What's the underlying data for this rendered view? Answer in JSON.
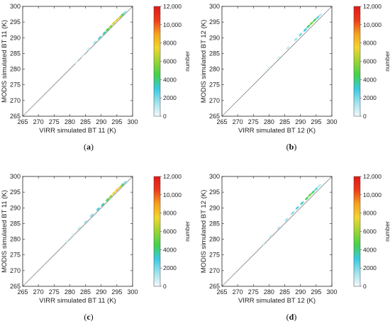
{
  "colors": {
    "colormap": [
      "#f4f9fb",
      "#9fe3ee",
      "#38c9e1",
      "#42d24a",
      "#9bd433",
      "#f2d62c",
      "#f7a21c",
      "#ee3a1a",
      "#e0181b"
    ],
    "diagonal": "#808080"
  },
  "chart_data": [
    {
      "type": "scatter",
      "panel_label": "a",
      "xlabel": "VIRR simulated BT 11 (K)",
      "ylabel": "MODIS simulated BT 11 (K)",
      "xlim": [
        265,
        300
      ],
      "ylim": [
        265,
        300
      ],
      "xticks": [
        265,
        270,
        275,
        280,
        285,
        290,
        295,
        300
      ],
      "yticks": [
        265,
        270,
        275,
        280,
        285,
        290,
        295,
        300
      ],
      "colorbar": {
        "label": "number",
        "range": [
          0,
          12000
        ],
        "ticks": [
          "0",
          "2000",
          "4000",
          "6000",
          "8000",
          "10,000",
          "12,000"
        ]
      },
      "points": [
        [
          282,
          282.3,
          300
        ],
        [
          284,
          284.3,
          500
        ],
        [
          286,
          286.4,
          900
        ],
        [
          288,
          288.5,
          1600
        ],
        [
          289.5,
          290,
          2500
        ],
        [
          291,
          291.5,
          3500
        ],
        [
          292,
          292.6,
          4600
        ],
        [
          293,
          293.6,
          5800
        ],
        [
          294,
          294.7,
          6900
        ],
        [
          295,
          295.7,
          7800
        ],
        [
          296,
          296.6,
          6600
        ],
        [
          296.8,
          297.4,
          4200
        ],
        [
          297.5,
          298,
          1800
        ]
      ]
    },
    {
      "type": "scatter",
      "panel_label": "b",
      "xlabel": "VIRR simulated BT 12 (K)",
      "ylabel": "MODIS simulated BT 12 (K)",
      "xlim": [
        265,
        300
      ],
      "ylim": [
        265,
        300
      ],
      "xticks": [
        265,
        270,
        275,
        280,
        285,
        290,
        295,
        300
      ],
      "yticks": [
        265,
        270,
        275,
        280,
        285,
        290,
        295,
        300
      ],
      "colorbar": {
        "label": "number",
        "range": [
          0,
          12000
        ],
        "ticks": [
          "0",
          "2000",
          "4000",
          "6000",
          "8000",
          "10,000",
          "12,000"
        ]
      },
      "points": [
        [
          280,
          280.5,
          300
        ],
        [
          283,
          283.6,
          500
        ],
        [
          286,
          286.8,
          900
        ],
        [
          288.5,
          289.5,
          1500
        ],
        [
          290,
          291,
          2200
        ],
        [
          291.5,
          292.5,
          3000
        ],
        [
          292.5,
          293.6,
          4000
        ],
        [
          293.5,
          294.6,
          5200
        ],
        [
          294.5,
          295.6,
          4400
        ],
        [
          295.5,
          296.5,
          2600
        ],
        [
          296.2,
          297.2,
          1200
        ]
      ]
    },
    {
      "type": "scatter",
      "panel_label": "c",
      "xlabel": "VIRR simulated BT 11 (K)",
      "ylabel": "MODIS simulated BT 11 (K)",
      "xlim": [
        265,
        300
      ],
      "ylim": [
        265,
        300
      ],
      "xticks": [
        265,
        270,
        275,
        280,
        285,
        290,
        295,
        300
      ],
      "yticks": [
        265,
        270,
        275,
        280,
        285,
        290,
        295,
        300
      ],
      "colorbar": {
        "label": "number",
        "range": [
          0,
          12000
        ],
        "ticks": [
          "0",
          "2000",
          "4000",
          "6000",
          "8000",
          "10,000",
          "12,000"
        ]
      },
      "points": [
        [
          279,
          279.4,
          400
        ],
        [
          281,
          281.4,
          700
        ],
        [
          283,
          283.5,
          1000
        ],
        [
          285,
          285.5,
          1400
        ],
        [
          287,
          287.6,
          2000
        ],
        [
          289,
          289.6,
          2800
        ],
        [
          290.5,
          291,
          3600
        ],
        [
          292,
          292.6,
          4700
        ],
        [
          293,
          293.6,
          6000
        ],
        [
          294,
          294.7,
          7300
        ],
        [
          295,
          295.7,
          8200
        ],
        [
          296,
          296.6,
          6900
        ],
        [
          296.8,
          297.4,
          4300
        ],
        [
          297.5,
          298,
          1900
        ]
      ]
    },
    {
      "type": "scatter",
      "panel_label": "d",
      "xlabel": "VIRR simulated BT 12 (K)",
      "ylabel": "MODIS simulated BT 12 (K)",
      "xlim": [
        265,
        300
      ],
      "ylim": [
        265,
        300
      ],
      "xticks": [
        265,
        270,
        275,
        280,
        285,
        290,
        295,
        300
      ],
      "yticks": [
        265,
        270,
        275,
        280,
        285,
        290,
        295,
        300
      ],
      "colorbar": {
        "label": "number",
        "range": [
          0,
          12000
        ],
        "ticks": [
          "0",
          "2000",
          "4000",
          "6000",
          "8000",
          "10,000",
          "12,000"
        ]
      },
      "points": [
        [
          278,
          278.4,
          400
        ],
        [
          280.5,
          281,
          700
        ],
        [
          283,
          283.6,
          1000
        ],
        [
          285.5,
          286.2,
          1400
        ],
        [
          287.5,
          288.4,
          2000
        ],
        [
          289,
          290,
          2700
        ],
        [
          290.5,
          291.5,
          3400
        ],
        [
          292,
          293,
          4300
        ],
        [
          293,
          294.1,
          5000
        ],
        [
          294,
          295,
          4100
        ],
        [
          295,
          296,
          2600
        ],
        [
          296,
          297,
          1200
        ]
      ]
    }
  ]
}
